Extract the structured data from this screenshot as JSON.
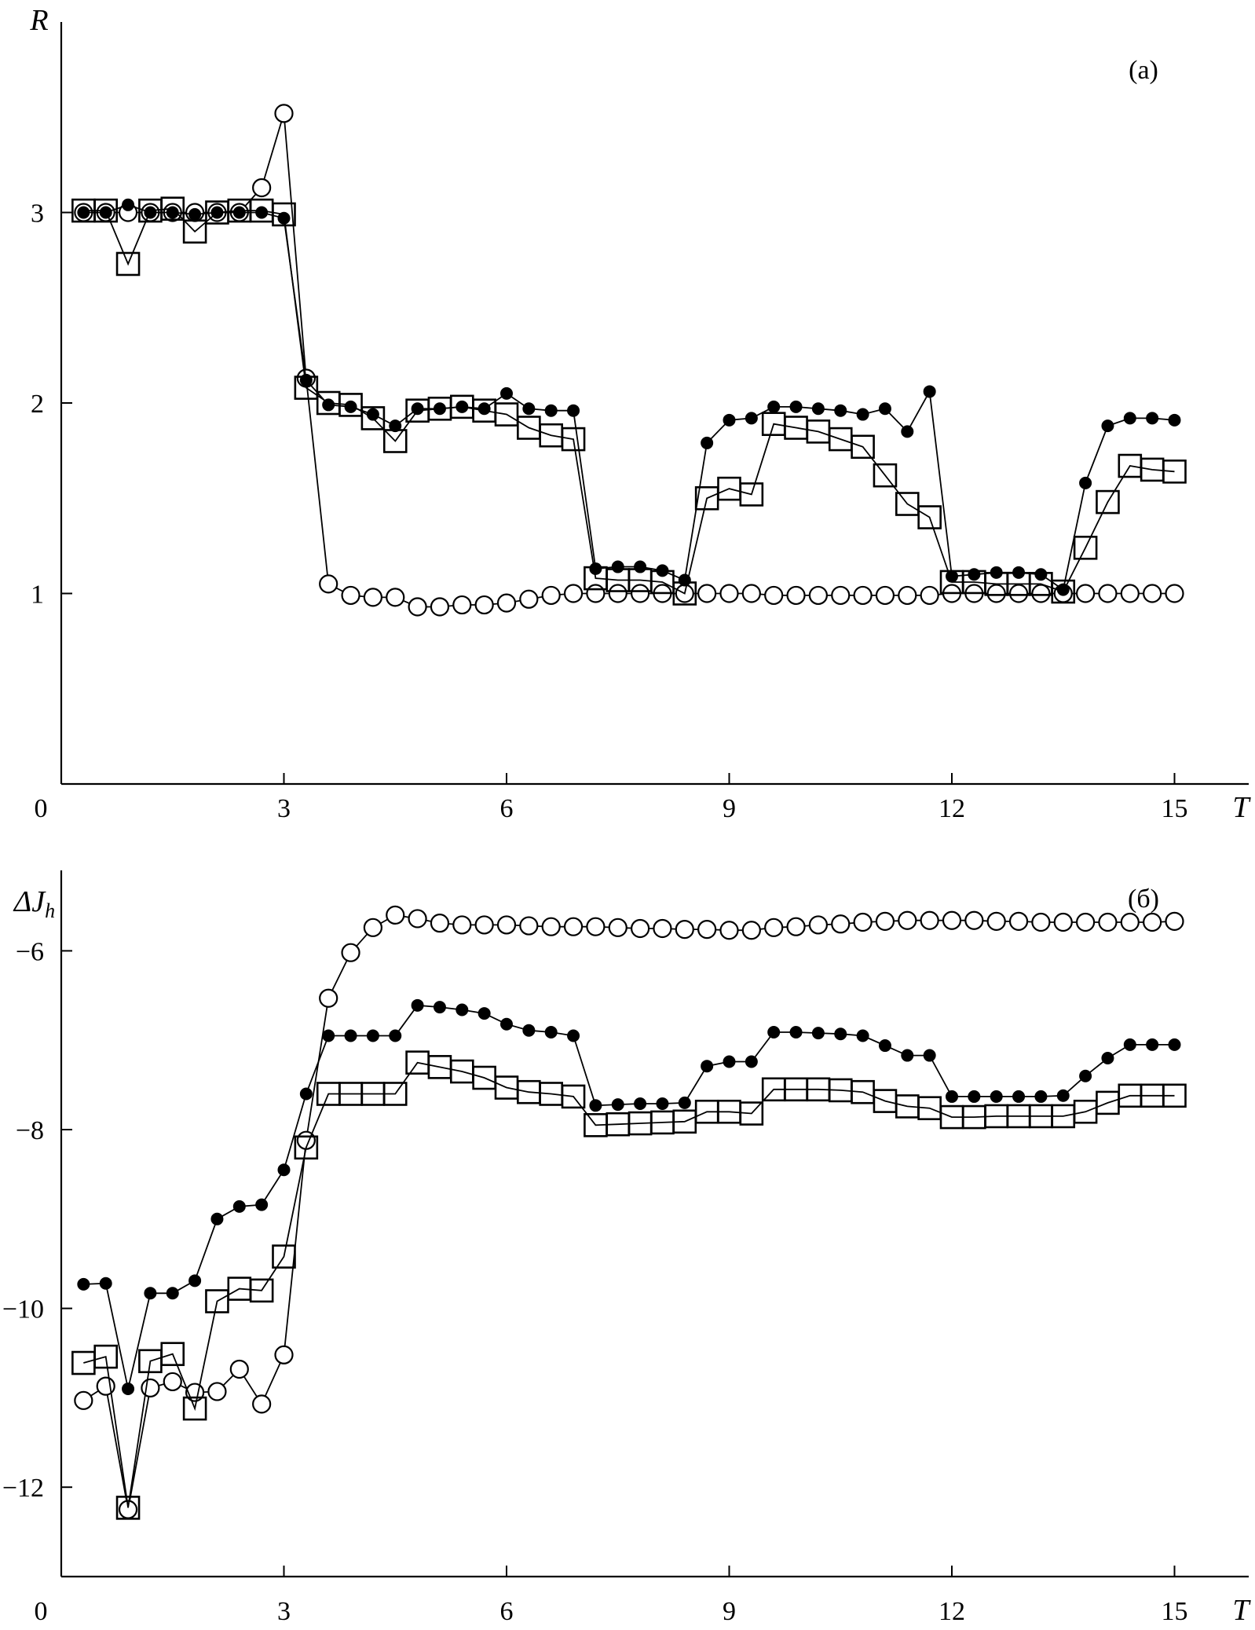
{
  "chart_data": [
    {
      "type": "line",
      "panel_label": "(a)",
      "ylabel": "R",
      "xlabel": "T",
      "xlim": [
        0,
        16
      ],
      "ylim": [
        0,
        4.0
      ],
      "xticks": [
        0,
        3,
        6,
        9,
        12,
        15
      ],
      "xtick_labels": [
        "0",
        "3",
        "6",
        "9",
        "12",
        "15"
      ],
      "yticks": [
        1,
        2,
        3
      ],
      "ytick_labels": [
        "1",
        "2",
        "3"
      ],
      "series": [
        {
          "marker": "open-circle",
          "x": [
            0.3,
            0.6,
            0.9,
            1.2,
            1.5,
            1.8,
            2.1,
            2.4,
            2.7,
            3.0,
            3.3,
            3.6,
            3.9,
            4.2,
            4.5,
            4.8,
            5.1,
            5.4,
            5.7,
            6.0,
            6.3,
            6.6,
            6.9,
            7.2,
            7.5,
            7.8,
            8.1,
            8.4,
            8.7,
            9.0,
            9.3,
            9.6,
            9.9,
            10.2,
            10.5,
            10.8,
            11.1,
            11.4,
            11.7,
            12.0,
            12.3,
            12.6,
            12.9,
            13.2,
            13.5,
            13.8,
            14.1,
            14.4,
            14.7,
            15.0
          ],
          "y": [
            3.0,
            3.0,
            3.0,
            3.0,
            3.0,
            3.0,
            3.0,
            3.0,
            3.13,
            3.52,
            2.13,
            1.05,
            0.99,
            0.98,
            0.98,
            0.93,
            0.93,
            0.94,
            0.94,
            0.95,
            0.97,
            0.99,
            1.0,
            1.0,
            1.0,
            1.0,
            1.0,
            1.0,
            1.0,
            1.0,
            1.0,
            0.99,
            0.99,
            0.99,
            0.99,
            0.99,
            0.99,
            0.99,
            0.99,
            1.0,
            1.0,
            1.0,
            1.0,
            1.0,
            1.0,
            1.0,
            1.0,
            1.0,
            1.0,
            1.0
          ]
        },
        {
          "marker": "filled-circle",
          "x": [
            0.3,
            0.6,
            0.9,
            1.2,
            1.5,
            1.8,
            2.1,
            2.4,
            2.7,
            3.0,
            3.3,
            3.6,
            3.9,
            4.2,
            4.5,
            4.8,
            5.1,
            5.4,
            5.7,
            6.0,
            6.3,
            6.6,
            6.9,
            7.2,
            7.5,
            7.8,
            8.1,
            8.4,
            8.7,
            9.0,
            9.3,
            9.6,
            9.9,
            10.2,
            10.5,
            10.8,
            11.1,
            11.4,
            11.7,
            12.0,
            12.3,
            12.6,
            12.9,
            13.2,
            13.5,
            13.8,
            14.1,
            14.4,
            14.7,
            15.0
          ],
          "y": [
            3.0,
            3.0,
            3.04,
            3.0,
            3.0,
            2.99,
            3.0,
            3.0,
            3.0,
            2.97,
            2.12,
            1.99,
            1.98,
            1.94,
            1.88,
            1.97,
            1.97,
            1.98,
            1.97,
            2.05,
            1.97,
            1.96,
            1.96,
            1.13,
            1.14,
            1.14,
            1.12,
            1.07,
            1.79,
            1.91,
            1.92,
            1.98,
            1.98,
            1.97,
            1.96,
            1.94,
            1.97,
            1.85,
            2.06,
            1.09,
            1.1,
            1.11,
            1.11,
            1.1,
            1.02,
            1.58,
            1.88,
            1.92,
            1.92,
            1.91
          ]
        },
        {
          "marker": "open-square",
          "x": [
            0.3,
            0.6,
            0.9,
            1.2,
            1.5,
            1.8,
            2.1,
            2.4,
            2.7,
            3.0,
            3.3,
            3.6,
            3.9,
            4.2,
            4.5,
            4.8,
            5.1,
            5.4,
            5.7,
            6.0,
            6.3,
            6.6,
            6.9,
            7.2,
            7.5,
            7.8,
            8.1,
            8.4,
            8.7,
            9.0,
            9.3,
            9.6,
            9.9,
            10.2,
            10.5,
            10.8,
            11.1,
            11.4,
            11.7,
            12.0,
            12.3,
            12.6,
            12.9,
            13.2,
            13.5,
            13.8,
            14.1,
            14.4,
            14.7,
            15.0
          ],
          "y": [
            3.01,
            3.01,
            2.73,
            3.01,
            3.02,
            2.9,
            3.0,
            3.01,
            3.01,
            2.99,
            2.08,
            2.0,
            1.99,
            1.92,
            1.8,
            1.96,
            1.97,
            1.98,
            1.96,
            1.94,
            1.87,
            1.83,
            1.81,
            1.08,
            1.07,
            1.07,
            1.06,
            1.0,
            1.5,
            1.55,
            1.52,
            1.89,
            1.87,
            1.85,
            1.81,
            1.77,
            1.62,
            1.47,
            1.4,
            1.06,
            1.06,
            1.05,
            1.05,
            1.05,
            1.01,
            1.24,
            1.48,
            1.67,
            1.65,
            1.64
          ]
        }
      ]
    },
    {
      "type": "line",
      "panel_label": "(б)",
      "ylabel": "ΔJ",
      "ylabel_sub": "h",
      "xlabel": "T",
      "xlim": [
        0,
        16
      ],
      "ylim": [
        -13.0,
        -5.1
      ],
      "xticks": [
        0,
        3,
        6,
        9,
        12,
        15
      ],
      "xtick_labels": [
        "0",
        "3",
        "6",
        "9",
        "12",
        "15"
      ],
      "yticks": [
        -6,
        -8,
        -10,
        -12
      ],
      "ytick_labels": [
        "−6",
        "−8",
        "−10",
        "−12"
      ],
      "series": [
        {
          "marker": "open-circle",
          "x": [
            0.3,
            0.6,
            0.9,
            1.2,
            1.5,
            1.8,
            2.1,
            2.4,
            2.7,
            3.0,
            3.3,
            3.6,
            3.9,
            4.2,
            4.5,
            4.8,
            5.1,
            5.4,
            5.7,
            6.0,
            6.3,
            6.6,
            6.9,
            7.2,
            7.5,
            7.8,
            8.1,
            8.4,
            8.7,
            9.0,
            9.3,
            9.6,
            9.9,
            10.2,
            10.5,
            10.8,
            11.1,
            11.4,
            11.7,
            12.0,
            12.3,
            12.6,
            12.9,
            13.2,
            13.5,
            13.8,
            14.1,
            14.4,
            14.7,
            15.0
          ],
          "y": [
            -11.03,
            -10.87,
            -12.25,
            -10.89,
            -10.82,
            -10.94,
            -10.93,
            -10.68,
            -11.07,
            -10.52,
            -8.12,
            -6.53,
            -6.02,
            -5.74,
            -5.6,
            -5.64,
            -5.69,
            -5.71,
            -5.71,
            -5.71,
            -5.72,
            -5.73,
            -5.73,
            -5.73,
            -5.74,
            -5.75,
            -5.75,
            -5.76,
            -5.76,
            -5.77,
            -5.77,
            -5.74,
            -5.73,
            -5.71,
            -5.7,
            -5.68,
            -5.67,
            -5.66,
            -5.66,
            -5.66,
            -5.66,
            -5.67,
            -5.67,
            -5.68,
            -5.68,
            -5.68,
            -5.68,
            -5.68,
            -5.68,
            -5.67
          ]
        },
        {
          "marker": "filled-circle",
          "x": [
            0.3,
            0.6,
            0.9,
            1.2,
            1.5,
            1.8,
            2.1,
            2.4,
            2.7,
            3.0,
            3.3,
            3.6,
            3.9,
            4.2,
            4.5,
            4.8,
            5.1,
            5.4,
            5.7,
            6.0,
            6.3,
            6.6,
            6.9,
            7.2,
            7.5,
            7.8,
            8.1,
            8.4,
            8.7,
            9.0,
            9.3,
            9.6,
            9.9,
            10.2,
            10.5,
            10.8,
            11.1,
            11.4,
            11.7,
            12.0,
            12.3,
            12.6,
            12.9,
            13.2,
            13.5,
            13.8,
            14.1,
            14.4,
            14.7,
            15.0
          ],
          "y": [
            -9.73,
            -9.72,
            -10.9,
            -9.83,
            -9.83,
            -9.69,
            -9.0,
            -8.86,
            -8.84,
            -8.45,
            -7.6,
            -6.95,
            -6.95,
            -6.95,
            -6.95,
            -6.61,
            -6.63,
            -6.66,
            -6.7,
            -6.82,
            -6.89,
            -6.91,
            -6.95,
            -7.73,
            -7.72,
            -7.71,
            -7.71,
            -7.7,
            -7.29,
            -7.24,
            -7.24,
            -6.91,
            -6.91,
            -6.92,
            -6.93,
            -6.95,
            -7.06,
            -7.17,
            -7.17,
            -7.63,
            -7.63,
            -7.63,
            -7.63,
            -7.63,
            -7.62,
            -7.4,
            -7.2,
            -7.05,
            -7.05,
            -7.05
          ]
        },
        {
          "marker": "open-square",
          "x": [
            0.3,
            0.6,
            0.9,
            1.2,
            1.5,
            1.8,
            2.1,
            2.4,
            2.7,
            3.0,
            3.3,
            3.6,
            3.9,
            4.2,
            4.5,
            4.8,
            5.1,
            5.4,
            5.7,
            6.0,
            6.3,
            6.6,
            6.9,
            7.2,
            7.5,
            7.8,
            8.1,
            8.4,
            8.7,
            9.0,
            9.3,
            9.6,
            9.9,
            10.2,
            10.5,
            10.8,
            11.1,
            11.4,
            11.7,
            12.0,
            12.3,
            12.6,
            12.9,
            13.2,
            13.5,
            13.8,
            14.1,
            14.4,
            14.7,
            15.0
          ],
          "y": [
            -10.61,
            -10.54,
            -12.23,
            -10.59,
            -10.51,
            -11.12,
            -9.92,
            -9.78,
            -9.8,
            -9.42,
            -8.2,
            -7.6,
            -7.6,
            -7.6,
            -7.6,
            -7.25,
            -7.3,
            -7.35,
            -7.42,
            -7.53,
            -7.58,
            -7.6,
            -7.63,
            -7.95,
            -7.94,
            -7.93,
            -7.92,
            -7.91,
            -7.8,
            -7.8,
            -7.82,
            -7.55,
            -7.55,
            -7.55,
            -7.56,
            -7.58,
            -7.68,
            -7.74,
            -7.76,
            -7.86,
            -7.86,
            -7.85,
            -7.85,
            -7.85,
            -7.85,
            -7.8,
            -7.7,
            -7.62,
            -7.62,
            -7.62
          ]
        }
      ]
    }
  ]
}
